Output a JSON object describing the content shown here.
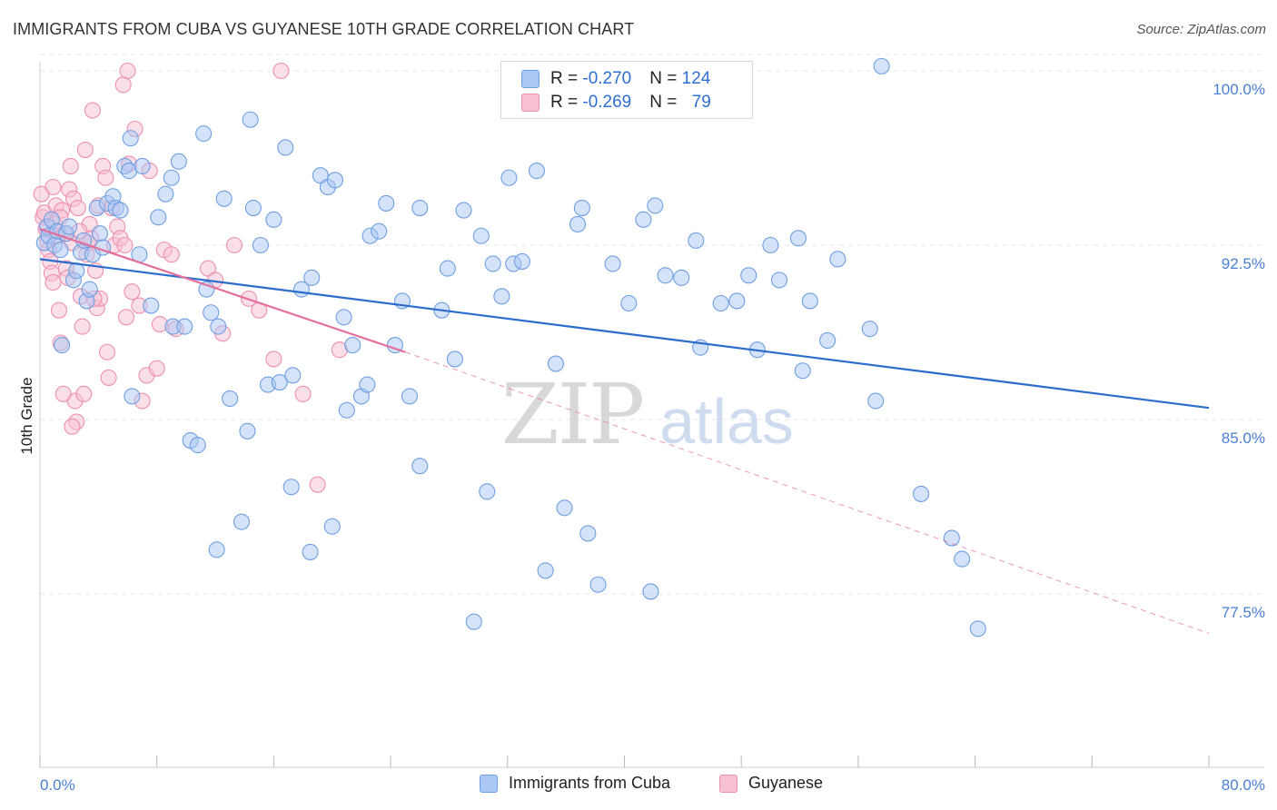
{
  "title": "IMMIGRANTS FROM CUBA VS GUYANESE 10TH GRADE CORRELATION CHART",
  "source": "Source: ZipAtlas.com",
  "watermark": {
    "zip": "ZIP",
    "atlas": "atlas"
  },
  "legend": {
    "rows": [
      {
        "r_label": "R = ",
        "r_value": "-0.270",
        "n_label": "N = ",
        "n_value": "124",
        "color": "#7aaaf0"
      },
      {
        "r_label": "R = ",
        "r_value": "-0.269",
        "n_label": "N = ",
        "n_value": "79",
        "color": "#f59bb8"
      }
    ]
  },
  "colors": {
    "cuba_fill": "#aac8f3",
    "cuba_stroke": "#6f9fe2",
    "cuba_line": "#2b6ccc",
    "guy_fill": "#f7bfd2",
    "guy_stroke": "#ee8fb0",
    "guy_line": "#e46f9b",
    "grid": "#e6e6e6",
    "tick_text": "#4a7fd4"
  },
  "chart_data": {
    "type": "scatter",
    "title": "IMMIGRANTS FROM CUBA VS GUYANESE 10TH GRADE CORRELATION CHART",
    "xlabel": "",
    "ylabel": "10th Grade",
    "xlim": [
      0,
      80
    ],
    "ylim": [
      71,
      101
    ],
    "x_tick_labels": [
      "0.0%",
      "80.0%"
    ],
    "y_ticks": [
      77.5,
      85.0,
      92.5,
      100.0
    ],
    "y_tick_labels": [
      "77.5%",
      "85.0%",
      "92.5%",
      "100.0%"
    ],
    "grid": true,
    "legend_position": "top-center",
    "series": [
      {
        "name": "Immigrants from Cuba",
        "r": -0.27,
        "n": 124,
        "trend": {
          "x0": 0,
          "y0": 91.9,
          "x1": 80,
          "y1": 85.5
        },
        "points": [
          [
            0.3,
            92.6
          ],
          [
            0.5,
            93.3
          ],
          [
            0.6,
            92.9
          ],
          [
            0.8,
            93.6
          ],
          [
            1.0,
            92.5
          ],
          [
            1.2,
            93.1
          ],
          [
            1.4,
            92.3
          ],
          [
            1.5,
            88.2
          ],
          [
            1.8,
            93.0
          ],
          [
            2.0,
            93.3
          ],
          [
            2.3,
            91.0
          ],
          [
            2.5,
            91.4
          ],
          [
            2.8,
            92.2
          ],
          [
            3.0,
            92.7
          ],
          [
            3.2,
            90.1
          ],
          [
            3.4,
            90.6
          ],
          [
            3.6,
            92.1
          ],
          [
            3.9,
            94.1
          ],
          [
            4.1,
            93.0
          ],
          [
            4.3,
            92.4
          ],
          [
            4.6,
            94.3
          ],
          [
            5.0,
            94.6
          ],
          [
            5.2,
            94.1
          ],
          [
            5.5,
            94.0
          ],
          [
            5.8,
            95.9
          ],
          [
            6.1,
            95.7
          ],
          [
            6.3,
            86.0
          ],
          [
            6.8,
            92.1
          ],
          [
            7.0,
            95.9
          ],
          [
            7.6,
            89.9
          ],
          [
            8.1,
            93.7
          ],
          [
            8.6,
            94.7
          ],
          [
            9.1,
            89.0
          ],
          [
            9.5,
            96.1
          ],
          [
            9.9,
            89.0
          ],
          [
            10.3,
            84.1
          ],
          [
            10.8,
            83.9
          ],
          [
            11.4,
            90.6
          ],
          [
            11.7,
            89.6
          ],
          [
            12.2,
            89.0
          ],
          [
            12.6,
            94.5
          ],
          [
            13.0,
            85.9
          ],
          [
            13.8,
            80.6
          ],
          [
            14.2,
            84.5
          ],
          [
            14.6,
            94.1
          ],
          [
            15.1,
            92.5
          ],
          [
            15.6,
            86.5
          ],
          [
            16.0,
            93.6
          ],
          [
            16.4,
            86.6
          ],
          [
            16.8,
            96.7
          ],
          [
            17.3,
            86.9
          ],
          [
            17.9,
            90.6
          ],
          [
            18.6,
            91.1
          ],
          [
            19.2,
            95.5
          ],
          [
            19.7,
            95.0
          ],
          [
            20.2,
            95.3
          ],
          [
            20.8,
            89.4
          ],
          [
            21.4,
            88.2
          ],
          [
            22.0,
            86.0
          ],
          [
            22.6,
            92.9
          ],
          [
            23.2,
            93.1
          ],
          [
            23.7,
            94.3
          ],
          [
            24.3,
            88.2
          ],
          [
            24.8,
            90.1
          ],
          [
            25.3,
            86.0
          ],
          [
            26.0,
            94.1
          ],
          [
            27.5,
            89.7
          ],
          [
            27.9,
            91.5
          ],
          [
            28.4,
            87.6
          ],
          [
            29.0,
            94.0
          ],
          [
            29.7,
            76.3
          ],
          [
            30.2,
            92.9
          ],
          [
            31.0,
            91.7
          ],
          [
            31.6,
            90.3
          ],
          [
            32.1,
            95.4
          ],
          [
            32.4,
            91.7
          ],
          [
            33.0,
            91.8
          ],
          [
            34.0,
            95.7
          ],
          [
            35.3,
            87.4
          ],
          [
            35.9,
            81.2
          ],
          [
            36.8,
            93.4
          ],
          [
            37.1,
            94.1
          ],
          [
            37.5,
            80.1
          ],
          [
            38.2,
            77.9
          ],
          [
            39.2,
            91.7
          ],
          [
            40.3,
            90.0
          ],
          [
            41.3,
            93.6
          ],
          [
            41.8,
            77.6
          ],
          [
            42.1,
            94.2
          ],
          [
            42.8,
            91.2
          ],
          [
            43.9,
            91.1
          ],
          [
            44.9,
            92.7
          ],
          [
            45.2,
            88.1
          ],
          [
            46.6,
            90.0
          ],
          [
            47.7,
            90.1
          ],
          [
            48.5,
            91.2
          ],
          [
            49.1,
            88.0
          ],
          [
            50.0,
            92.5
          ],
          [
            50.6,
            91.0
          ],
          [
            51.9,
            92.8
          ],
          [
            52.2,
            87.1
          ],
          [
            52.7,
            90.1
          ],
          [
            53.9,
            88.4
          ],
          [
            54.6,
            91.9
          ],
          [
            56.8,
            88.9
          ],
          [
            57.2,
            85.8
          ],
          [
            57.6,
            100.2
          ],
          [
            60.3,
            81.8
          ],
          [
            62.4,
            79.9
          ],
          [
            63.1,
            79.0
          ],
          [
            64.2,
            76.0
          ],
          [
            17.2,
            82.1
          ],
          [
            18.5,
            79.3
          ],
          [
            20.0,
            80.4
          ],
          [
            21.0,
            85.4
          ],
          [
            22.4,
            86.5
          ],
          [
            26.0,
            83.0
          ],
          [
            30.6,
            81.9
          ],
          [
            34.6,
            78.5
          ],
          [
            12.1,
            79.4
          ],
          [
            6.2,
            97.1
          ],
          [
            9.0,
            95.4
          ],
          [
            11.2,
            97.3
          ],
          [
            14.4,
            97.9
          ]
        ]
      },
      {
        "name": "Guyanese",
        "r": -0.269,
        "n": 79,
        "trend": {
          "x0": 0,
          "y0": 93.2,
          "x1": 25,
          "y1": 87.9,
          "dash_x1": 80,
          "dash_y1": 75.8
        },
        "points": [
          [
            0.1,
            94.7
          ],
          [
            0.2,
            93.7
          ],
          [
            0.3,
            93.9
          ],
          [
            0.4,
            93.2
          ],
          [
            0.5,
            92.7
          ],
          [
            0.6,
            92.3
          ],
          [
            0.7,
            91.8
          ],
          [
            0.8,
            91.3
          ],
          [
            0.9,
            90.9
          ],
          [
            1.0,
            93.4
          ],
          [
            1.1,
            94.2
          ],
          [
            1.2,
            92.9
          ],
          [
            1.3,
            89.7
          ],
          [
            1.4,
            88.3
          ],
          [
            1.5,
            94.0
          ],
          [
            1.7,
            93.0
          ],
          [
            1.8,
            91.5
          ],
          [
            1.9,
            91.1
          ],
          [
            2.0,
            94.9
          ],
          [
            2.1,
            95.9
          ],
          [
            2.2,
            92.6
          ],
          [
            2.3,
            94.5
          ],
          [
            2.4,
            85.8
          ],
          [
            2.5,
            84.9
          ],
          [
            2.6,
            94.1
          ],
          [
            2.8,
            90.3
          ],
          [
            2.9,
            89.0
          ],
          [
            3.0,
            86.1
          ],
          [
            3.1,
            96.6
          ],
          [
            3.3,
            92.6
          ],
          [
            3.4,
            93.4
          ],
          [
            3.5,
            92.8
          ],
          [
            3.6,
            98.3
          ],
          [
            3.8,
            91.4
          ],
          [
            3.9,
            89.8
          ],
          [
            4.0,
            94.2
          ],
          [
            4.1,
            90.2
          ],
          [
            4.3,
            95.9
          ],
          [
            4.5,
            95.4
          ],
          [
            4.7,
            86.8
          ],
          [
            4.9,
            94.1
          ],
          [
            5.1,
            92.5
          ],
          [
            5.3,
            93.3
          ],
          [
            5.5,
            92.8
          ],
          [
            5.7,
            99.4
          ],
          [
            5.9,
            89.4
          ],
          [
            6.1,
            96.0
          ],
          [
            6.3,
            90.5
          ],
          [
            6.5,
            97.5
          ],
          [
            6.8,
            89.9
          ],
          [
            7.0,
            85.8
          ],
          [
            7.3,
            86.9
          ],
          [
            7.5,
            95.7
          ],
          [
            8.0,
            87.2
          ],
          [
            8.2,
            89.1
          ],
          [
            8.5,
            92.3
          ],
          [
            9.0,
            92.1
          ],
          [
            9.3,
            88.9
          ],
          [
            11.5,
            91.5
          ],
          [
            12.0,
            91.0
          ],
          [
            12.5,
            88.7
          ],
          [
            13.3,
            92.5
          ],
          [
            14.3,
            90.2
          ],
          [
            15.0,
            89.7
          ],
          [
            16.0,
            87.6
          ],
          [
            18.0,
            86.1
          ],
          [
            19.0,
            82.2
          ],
          [
            20.5,
            88.0
          ],
          [
            6.0,
            100.0
          ],
          [
            16.5,
            100.0
          ],
          [
            2.2,
            84.7
          ],
          [
            3.7,
            90.2
          ],
          [
            4.6,
            87.9
          ],
          [
            5.8,
            92.5
          ],
          [
            1.6,
            86.1
          ],
          [
            2.7,
            93.1
          ],
          [
            3.2,
            92.1
          ],
          [
            0.9,
            95.0
          ],
          [
            1.4,
            93.7
          ]
        ]
      }
    ]
  }
}
